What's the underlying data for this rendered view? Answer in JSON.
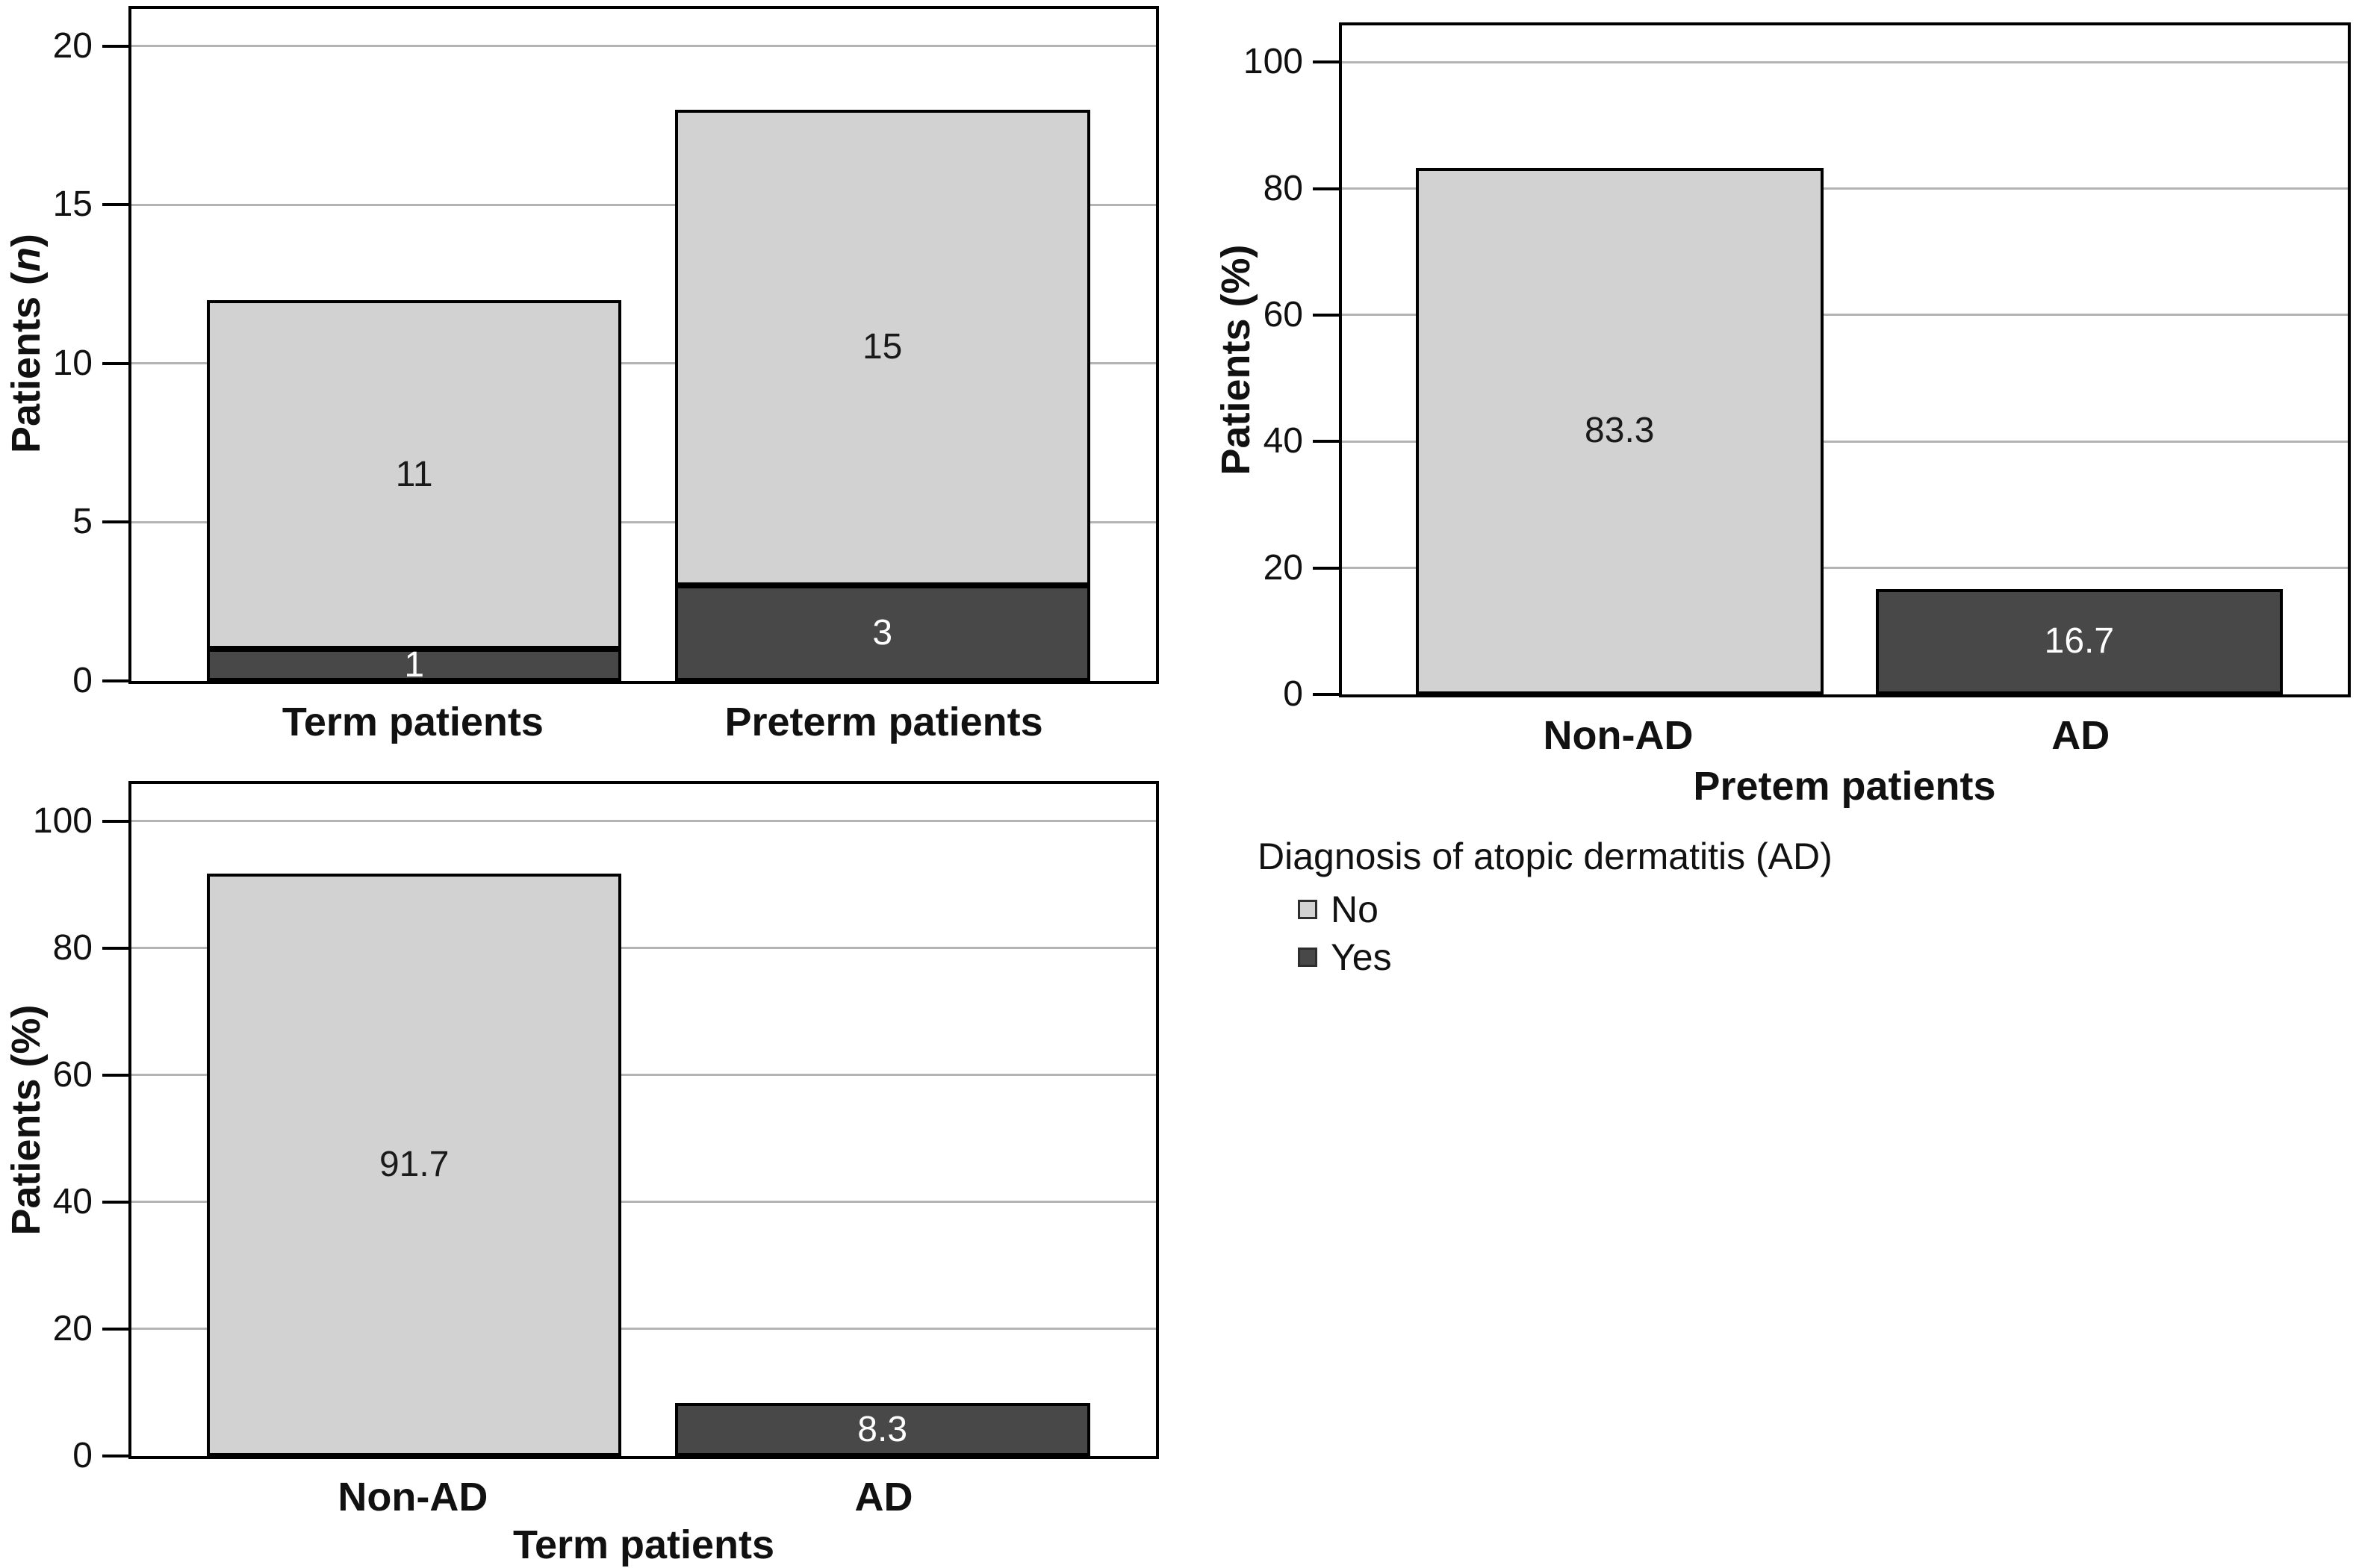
{
  "colors": {
    "no_fill": "#d2d2d2",
    "yes_fill": "#484848",
    "gridline": "#b4b4b4",
    "plot_border": "#000000",
    "dark_label_text": "#1a1a1a",
    "light_label_text": "#ffffff"
  },
  "series_styles": {
    "No": {
      "fill": "#d2d2d2",
      "text": "#1a1a1a"
    },
    "Yes": {
      "fill": "#484848",
      "text": "#ffffff"
    }
  },
  "legend": {
    "title": "Diagnosis of atopic dermatitis (AD)",
    "items": [
      {
        "label": "No",
        "series": "No"
      },
      {
        "label": "Yes",
        "series": "Yes"
      }
    ]
  },
  "chart_data": [
    {
      "type": "bar",
      "stacked": true,
      "title": "",
      "ylabel": "Patients (n)",
      "ylabel_parts": [
        "Patients (",
        "n",
        ")"
      ],
      "xlabel": "",
      "ylim": [
        0,
        20
      ],
      "yticks": [
        0,
        5,
        10,
        15,
        20
      ],
      "grid": true,
      "categories": [
        "Term patients",
        "Preterm patients"
      ],
      "series": [
        {
          "name": "Yes",
          "values": [
            1,
            3
          ]
        },
        {
          "name": "No",
          "values": [
            11,
            15
          ]
        }
      ],
      "bars": [
        [
          {
            "series": "Yes",
            "value": 1,
            "label": "1"
          },
          {
            "series": "No",
            "value": 11,
            "label": "11"
          }
        ],
        [
          {
            "series": "Yes",
            "value": 3,
            "label": "3"
          },
          {
            "series": "No",
            "value": 15,
            "label": "15"
          }
        ]
      ]
    },
    {
      "type": "bar",
      "stacked": false,
      "title": "",
      "ylabel": "Patients (%)",
      "ylabel_parts": [
        "Patients (%)",
        "",
        ""
      ],
      "xlabel": "Pretem patients",
      "ylim": [
        0,
        100
      ],
      "yticks": [
        0,
        20,
        40,
        60,
        80,
        100
      ],
      "grid": true,
      "categories": [
        "Non-AD",
        "AD"
      ],
      "values": [
        83.3,
        16.7
      ],
      "bars": [
        [
          {
            "series": "No",
            "value": 83.3,
            "label": "83.3"
          }
        ],
        [
          {
            "series": "Yes",
            "value": 16.7,
            "label": "16.7"
          }
        ]
      ]
    },
    {
      "type": "bar",
      "stacked": false,
      "title": "",
      "ylabel": "Patients (%)",
      "ylabel_parts": [
        "Patients (%)",
        "",
        ""
      ],
      "xlabel": "Term patients",
      "ylim": [
        0,
        100
      ],
      "yticks": [
        0,
        20,
        40,
        60,
        80,
        100
      ],
      "grid": true,
      "categories": [
        "Non-AD",
        "AD"
      ],
      "values": [
        91.7,
        8.3
      ],
      "bars": [
        [
          {
            "series": "No",
            "value": 91.7,
            "label": "91.7"
          }
        ],
        [
          {
            "series": "Yes",
            "value": 8.3,
            "label": "8.3"
          }
        ]
      ]
    }
  ]
}
